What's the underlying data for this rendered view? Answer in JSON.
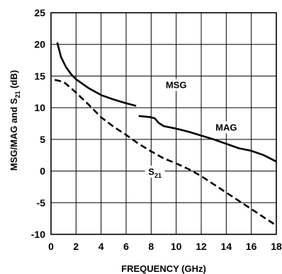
{
  "chart_data": {
    "type": "line",
    "title": "",
    "xlabel": "FREQUENCY (GHz)",
    "ylabel": "MSG/MAG and S",
    "ylabel_sub": "21",
    "ylabel_suffix": " (dB)",
    "xlim": [
      0,
      18
    ],
    "ylim": [
      -10,
      25
    ],
    "xticks": [
      0,
      2,
      4,
      6,
      8,
      10,
      12,
      14,
      16,
      18
    ],
    "yticks": [
      -10,
      -5,
      0,
      5,
      10,
      15,
      20,
      25
    ],
    "grid": true,
    "legend": "inline labels",
    "series": [
      {
        "name": "MSG",
        "label_main": "MSG",
        "label_sub": "",
        "style": "solid",
        "x": [
          0.5,
          0.8,
          1.2,
          1.6,
          2.0,
          3.0,
          4.0,
          5.0,
          6.0,
          6.8
        ],
        "y": [
          20.3,
          18.0,
          16.4,
          15.3,
          14.5,
          13.1,
          12.0,
          11.3,
          10.7,
          10.3
        ]
      },
      {
        "name": "MAG",
        "label_main": "MAG",
        "label_sub": "",
        "style": "solid",
        "x": [
          7.0,
          7.5,
          8.0,
          8.3,
          8.6,
          9.0,
          10.0,
          11.0,
          12.0,
          13.0,
          14.0,
          15.0,
          16.0,
          17.0,
          18.0
        ],
        "y": [
          8.7,
          8.6,
          8.5,
          8.3,
          7.6,
          7.1,
          6.7,
          6.2,
          5.6,
          5.0,
          4.3,
          3.6,
          3.2,
          2.5,
          1.5
        ]
      },
      {
        "name": "S21",
        "label_main": "S",
        "label_sub": "21",
        "style": "dashed",
        "x": [
          0.3,
          1.0,
          2.0,
          3.0,
          4.0,
          5.0,
          6.0,
          7.0,
          8.0,
          9.0,
          10.0,
          11.0,
          12.0,
          13.0,
          14.0,
          15.0,
          16.0,
          17.0,
          18.0
        ],
        "y": [
          14.4,
          14.1,
          12.4,
          10.5,
          8.5,
          7.0,
          5.7,
          4.3,
          3.1,
          2.0,
          1.2,
          0.3,
          -0.8,
          -2.1,
          -3.4,
          -4.7,
          -6.0,
          -7.3,
          -8.6
        ]
      }
    ]
  }
}
